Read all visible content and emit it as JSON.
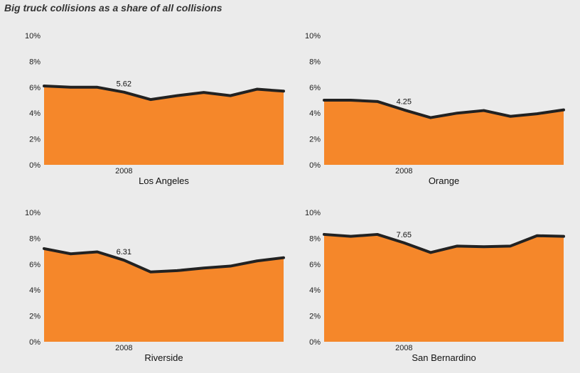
{
  "title": "Big truck collisions as a share of all collisions",
  "colors": {
    "area": "#f5872a",
    "line": "#222222",
    "background": "#ebebeb"
  },
  "chart_data": [
    {
      "type": "area",
      "panel": "Los Angeles",
      "x": [
        2005,
        2006,
        2007,
        2008,
        2009,
        2010,
        2011,
        2012,
        2013,
        2014
      ],
      "values": [
        6.1,
        6.0,
        6.0,
        5.62,
        5.05,
        5.35,
        5.6,
        5.35,
        5.85,
        5.7
      ],
      "ylim": [
        0,
        10
      ],
      "yticks": [
        "0%",
        "2%",
        "4%",
        "6%",
        "8%",
        "10%"
      ],
      "xtick_label": "2008",
      "annotation": {
        "x": 2008,
        "text": "5.62"
      }
    },
    {
      "type": "area",
      "panel": "Orange",
      "x": [
        2005,
        2006,
        2007,
        2008,
        2009,
        2010,
        2011,
        2012,
        2013,
        2014
      ],
      "values": [
        5.0,
        5.0,
        4.9,
        4.25,
        3.65,
        4.0,
        4.2,
        3.75,
        3.95,
        4.25
      ],
      "ylim": [
        0,
        10
      ],
      "yticks": [
        "0%",
        "2%",
        "4%",
        "6%",
        "8%",
        "10%"
      ],
      "xtick_label": "2008",
      "annotation": {
        "x": 2008,
        "text": "4.25"
      }
    },
    {
      "type": "area",
      "panel": "Riverside",
      "x": [
        2005,
        2006,
        2007,
        2008,
        2009,
        2010,
        2011,
        2012,
        2013,
        2014
      ],
      "values": [
        7.2,
        6.8,
        6.95,
        6.31,
        5.4,
        5.5,
        5.7,
        5.85,
        6.25,
        6.5
      ],
      "ylim": [
        0,
        10
      ],
      "yticks": [
        "0%",
        "2%",
        "4%",
        "6%",
        "8%",
        "10%"
      ],
      "xtick_label": "2008",
      "annotation": {
        "x": 2008,
        "text": "6.31"
      }
    },
    {
      "type": "area",
      "panel": "San Bernardino",
      "x": [
        2005,
        2006,
        2007,
        2008,
        2009,
        2010,
        2011,
        2012,
        2013,
        2014
      ],
      "values": [
        8.3,
        8.15,
        8.3,
        7.65,
        6.9,
        7.4,
        7.35,
        7.4,
        8.2,
        8.15
      ],
      "ylim": [
        0,
        10
      ],
      "yticks": [
        "0%",
        "2%",
        "4%",
        "6%",
        "8%",
        "10%"
      ],
      "xtick_label": "2008",
      "annotation": {
        "x": 2008,
        "text": "7.65"
      }
    }
  ]
}
